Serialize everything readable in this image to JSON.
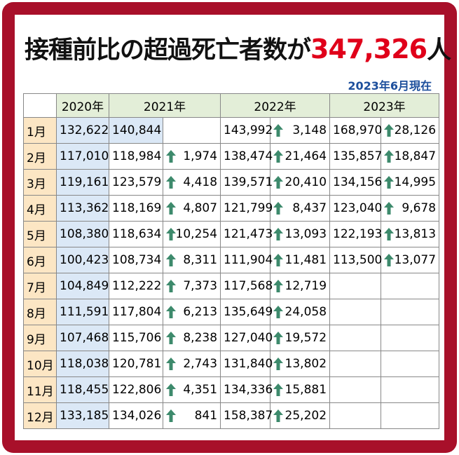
{
  "header": {
    "title_prefix": "接種前比の超過死亡者数が",
    "title_number": "347,326",
    "title_suffix": "人",
    "subtitle": "2023年6月現在"
  },
  "table": {
    "headers": [
      "2020年",
      "2021年",
      "2022年",
      "2023年"
    ],
    "rows": [
      [
        "1月",
        "132,622",
        "140,844",
        null,
        "143,992",
        "3,148",
        "168,970",
        "28,126"
      ],
      [
        "2月",
        "117,010",
        "118,984",
        "1,974",
        "138,474",
        "21,464",
        "135,857",
        "18,847"
      ],
      [
        "3月",
        "119,161",
        "123,579",
        "4,418",
        "139,571",
        "20,410",
        "134,156",
        "14,995"
      ],
      [
        "4月",
        "113,362",
        "118,169",
        "4,807",
        "121,799",
        "8,437",
        "123,040",
        "9,678"
      ],
      [
        "5月",
        "108,380",
        "118,634",
        "10,254",
        "121,473",
        "13,093",
        "122,193",
        "13,813"
      ],
      [
        "6月",
        "100,423",
        "108,734",
        "8,311",
        "111,904",
        "11,481",
        "113,500",
        "13,077"
      ],
      [
        "7月",
        "104,849",
        "112,222",
        "7,373",
        "117,568",
        "12,719",
        null,
        null
      ],
      [
        "8月",
        "111,591",
        "117,804",
        "6,213",
        "135,649",
        "24,058",
        null,
        null
      ],
      [
        "9月",
        "107,468",
        "115,706",
        "8,238",
        "127,040",
        "19,572",
        null,
        null
      ],
      [
        "10月",
        "118,038",
        "120,781",
        "2,743",
        "131,840",
        "13,802",
        null,
        null
      ],
      [
        "11月",
        "118,455",
        "122,806",
        "4,351",
        "134,336",
        "15,881",
        null,
        null
      ],
      [
        "12月",
        "133,185",
        "134,026",
        "841",
        "158,387",
        "25,202",
        null,
        null
      ]
    ]
  }
}
